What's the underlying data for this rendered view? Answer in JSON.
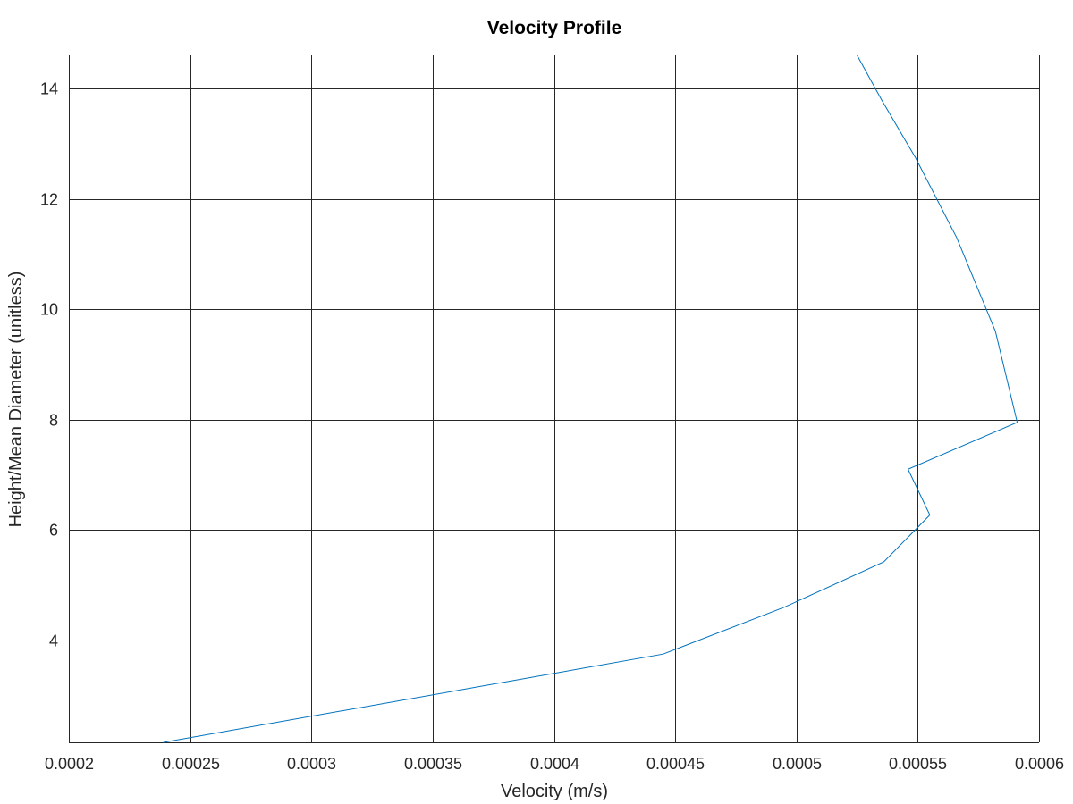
{
  "chart_data": {
    "type": "line",
    "title": "Velocity Profile",
    "xlabel": "Velocity (m/s)",
    "ylabel": "Height/Mean Diameter (unitless)",
    "xlim": [
      0.0002,
      0.0006
    ],
    "ylim": [
      2.15,
      14.6
    ],
    "grid": true,
    "x_ticks": [
      0.0002,
      0.00025,
      0.0003,
      0.00035,
      0.0004,
      0.00045,
      0.0005,
      0.00055,
      0.0006
    ],
    "x_tick_labels": [
      "0.0002",
      "0.00025",
      "0.0003",
      "0.00035",
      "0.0004",
      "0.00045",
      "0.0005",
      "0.00055",
      "0.0006"
    ],
    "y_ticks": [
      4,
      6,
      8,
      10,
      12,
      14
    ],
    "y_tick_labels": [
      "4",
      "6",
      "8",
      "10",
      "12",
      "14"
    ],
    "series": [
      {
        "color": "#0072bd",
        "x": [
          0.000239,
          0.000445,
          0.000495,
          0.000536,
          0.000555,
          0.000546,
          0.000591,
          0.000582,
          0.000566,
          0.000549,
          0.000535,
          0.000525
        ],
        "y": [
          2.15,
          3.75,
          4.6,
          5.42,
          6.27,
          7.1,
          7.95,
          9.6,
          11.3,
          12.75,
          13.8,
          14.6
        ]
      }
    ]
  }
}
